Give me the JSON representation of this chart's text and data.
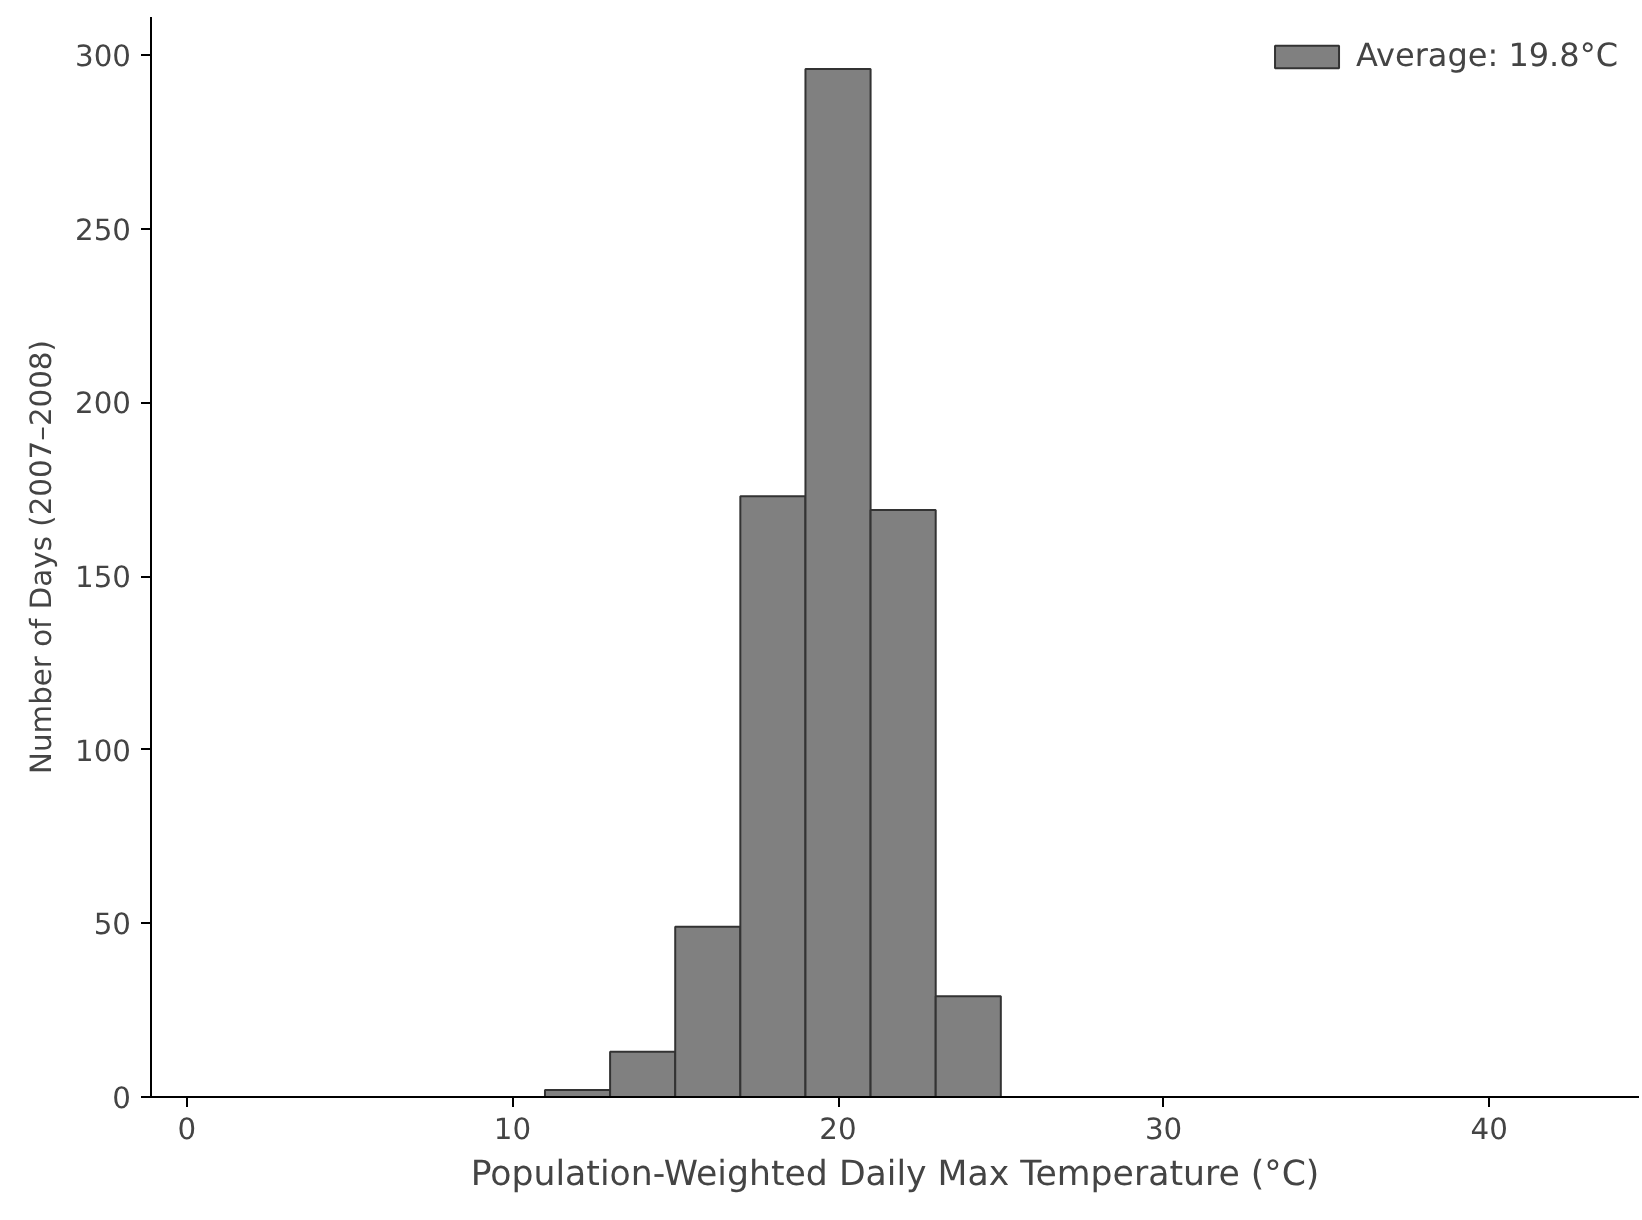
{
  "chart_data": {
    "type": "histogram",
    "xlabel": "Population-Weighted Daily Max Temperature (°C)",
    "ylabel": "Number of Days (2007–2008)",
    "bins": [
      11,
      13,
      15,
      17,
      19,
      21,
      23,
      25
    ],
    "series": [
      {
        "name": "Average: 19.8°C",
        "color": "#808080",
        "values": [
          2,
          13,
          49,
          173,
          296,
          169,
          29
        ]
      }
    ],
    "xlim": [
      -1.1,
      44.6
    ],
    "ylim": [
      0,
      311
    ],
    "xticks": [
      0,
      10,
      20,
      30,
      40
    ],
    "yticks": [
      0,
      50,
      100,
      150,
      200,
      250,
      300
    ],
    "grid": false,
    "legend": "top right"
  }
}
